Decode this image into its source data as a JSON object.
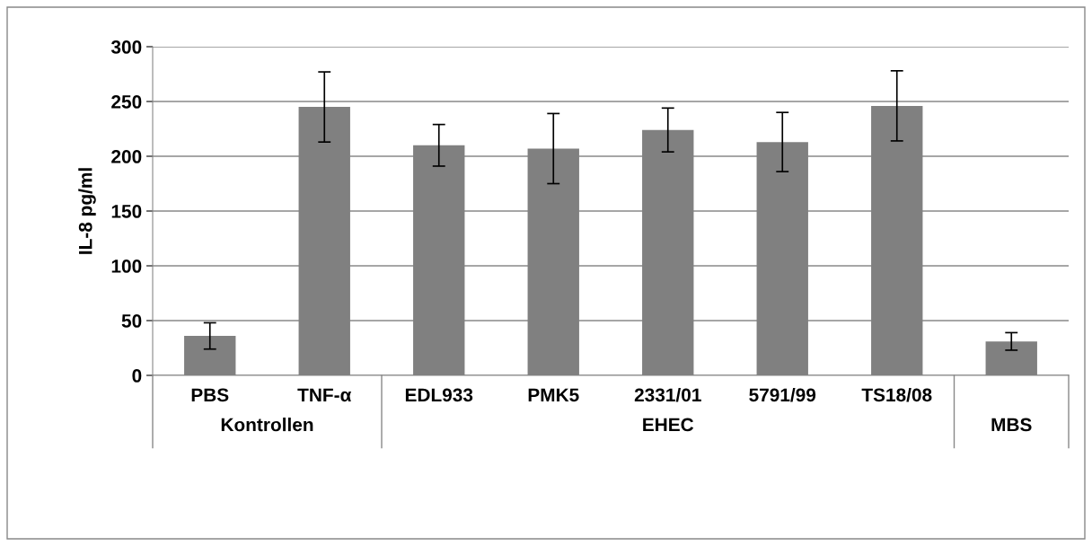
{
  "chart_data": {
    "type": "bar",
    "ylabel": "IL-8 pg/ml",
    "categories": [
      "PBS",
      "TNF-α",
      "EDL933",
      "PMK5",
      "2331/01",
      "5791/99",
      "TS18/08",
      null
    ],
    "values": [
      36,
      245,
      210,
      207,
      224,
      213,
      246,
      31
    ],
    "errors": [
      12,
      32,
      19,
      32,
      20,
      27,
      32,
      8
    ],
    "color": "#808080",
    "ylim": [
      0,
      300
    ],
    "yticks": [
      0,
      50,
      100,
      150,
      200,
      250,
      300
    ],
    "grid": "y",
    "annotations": [
      "Kontrollen",
      "EHEC",
      "MBS"
    ]
  }
}
